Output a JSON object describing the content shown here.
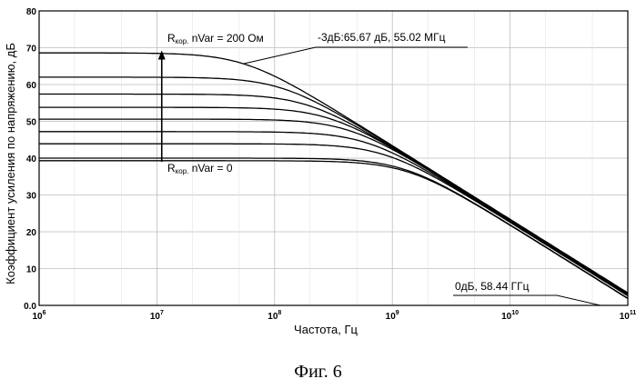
{
  "chart_data": {
    "type": "line",
    "x_scale": "log",
    "xlim": [
      1000000,
      100000000000
    ],
    "ylim": [
      0,
      80
    ],
    "grid": true,
    "xlabel": "Частота, Гц",
    "ylabel": "Коэффициент усиления по напряжению, дБ",
    "x_ticks": [
      {
        "base": "10",
        "exp": "6"
      },
      {
        "base": "10",
        "exp": "7"
      },
      {
        "base": "10",
        "exp": "8"
      },
      {
        "base": "10",
        "exp": "9"
      },
      {
        "base": "10",
        "exp": "10"
      },
      {
        "base": "10",
        "exp": "11"
      }
    ],
    "y_ticks": [
      "0.0",
      "10",
      "20",
      "30",
      "40",
      "50",
      "60",
      "70",
      "80"
    ],
    "x_tick_values": [
      1000000,
      10000000,
      100000000,
      1000000000,
      10000000000,
      100000000000
    ],
    "y_tick_values": [
      0,
      10,
      20,
      30,
      40,
      50,
      60,
      70,
      80
    ],
    "series": [
      {
        "gain_db": 68.6,
        "f3db_hz": 55000000
      },
      {
        "gain_db": 62.0,
        "f3db_hz": 115000000
      },
      {
        "gain_db": 57.4,
        "f3db_hz": 190000000
      },
      {
        "gain_db": 53.8,
        "f3db_hz": 290000000
      },
      {
        "gain_db": 50.6,
        "f3db_hz": 420000000
      },
      {
        "gain_db": 47.2,
        "f3db_hz": 600000000
      },
      {
        "gain_db": 43.9,
        "f3db_hz": 860000000
      },
      {
        "gain_db": 40.0,
        "f3db_hz": 1250000000
      },
      {
        "gain_db": 39.3,
        "f3db_hz": 1340000000
      }
    ],
    "arrow": {
      "x": 11000000,
      "y_from": 39,
      "y_to": 69
    },
    "annotations": {
      "top_label": {
        "prefix": "R",
        "sub": "кор.",
        "rest": " nVar = 200 Ом"
      },
      "bottom_label": {
        "prefix": "R",
        "sub": "кор.",
        "rest": " nVar = 0"
      },
      "marker_3db": {
        "text": "-3дБ:65.67 дБ, 55.02 МГц",
        "x": 55020000,
        "y": 65.67
      },
      "marker_0db": {
        "text": "0дБ, 58.44 ГГц",
        "x": 58440000000,
        "y": 0
      }
    }
  },
  "caption": "Фиг. 6"
}
